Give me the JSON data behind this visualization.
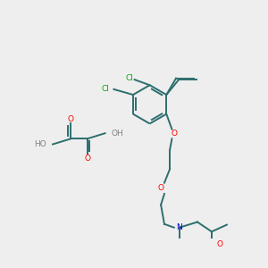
{
  "bg_color": "#eeeeee",
  "bond_color": "#2d6e6e",
  "atom_colors": {
    "O": "#ff0000",
    "N": "#0000cc",
    "Cl": "#00aa00",
    "H": "#808080"
  },
  "line_width": 1.4,
  "font_size": 6.5
}
